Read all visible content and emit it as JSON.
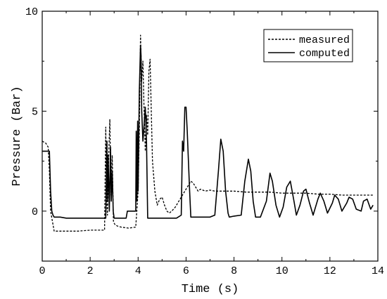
{
  "chart_data": {
    "type": "line",
    "title": "",
    "xlabel": "Time (s)",
    "ylabel": "Pressure (Bar)",
    "xlim": [
      0,
      14
    ],
    "ylim": [
      -2.5,
      10
    ],
    "xticks": [
      0,
      2,
      4,
      6,
      8,
      10,
      12,
      14
    ],
    "yticks": [
      0,
      5,
      10
    ],
    "xtick_labels": [
      "0",
      "2",
      "4",
      "6",
      "8",
      "10",
      "12",
      "14"
    ],
    "ytick_labels": [
      "0",
      "5",
      "10"
    ],
    "grid": false,
    "legend_position": "top-right",
    "series": [
      {
        "name": "measured",
        "style": "dashed",
        "color": "#000000",
        "x": [
          0,
          0.15,
          0.25,
          0.3,
          0.35,
          0.5,
          1.0,
          1.5,
          2.0,
          2.4,
          2.6,
          2.65,
          2.68,
          2.72,
          2.78,
          2.82,
          2.87,
          2.92,
          2.97,
          3.0,
          3.05,
          3.15,
          3.3,
          3.6,
          3.9,
          4.0,
          4.05,
          4.1,
          4.15,
          4.2,
          4.25,
          4.3,
          4.35,
          4.4,
          4.45,
          4.5,
          4.55,
          4.6,
          4.7,
          4.8,
          4.9,
          5.0,
          5.1,
          5.2,
          5.3,
          5.4,
          5.55,
          5.7,
          5.85,
          6.0,
          6.1,
          6.2,
          6.3,
          6.4,
          6.5,
          6.6,
          6.8,
          7.0,
          7.2,
          7.5,
          8.0,
          8.5,
          9.0,
          9.5,
          10.0,
          10.5,
          11.0,
          11.5,
          12.0,
          12.5,
          13.0,
          13.5,
          13.8
        ],
        "y": [
          3.5,
          3.4,
          3.2,
          2.0,
          0.0,
          -1.0,
          -1.0,
          -1.0,
          -0.95,
          -0.95,
          -0.95,
          4.2,
          1.0,
          -0.2,
          3.0,
          4.6,
          0.8,
          2.8,
          -0.5,
          -0.6,
          -0.7,
          -0.75,
          -0.8,
          -0.85,
          -0.8,
          1.0,
          4.0,
          8.8,
          6.5,
          7.5,
          5.0,
          3.0,
          4.8,
          3.8,
          7.0,
          7.6,
          5.0,
          2.5,
          1.0,
          0.3,
          0.6,
          0.7,
          0.3,
          0.0,
          -0.1,
          0.0,
          0.2,
          0.5,
          0.8,
          1.1,
          1.3,
          1.5,
          1.4,
          1.2,
          1.0,
          1.1,
          1.0,
          1.05,
          1.0,
          1.0,
          1.0,
          0.95,
          0.95,
          0.95,
          0.9,
          0.9,
          0.9,
          0.85,
          0.85,
          0.8,
          0.8,
          0.8,
          0.8
        ]
      },
      {
        "name": "computed",
        "style": "solid",
        "color": "#000000",
        "x": [
          0,
          0.3,
          0.35,
          0.4,
          0.45,
          0.5,
          0.7,
          0.75,
          1.0,
          2.0,
          2.5,
          2.65,
          2.7,
          2.72,
          2.75,
          2.8,
          2.85,
          2.88,
          2.92,
          2.96,
          3.0,
          3.5,
          3.55,
          3.9,
          3.92,
          3.95,
          3.98,
          4.0,
          4.05,
          4.1,
          4.12,
          4.15,
          4.2,
          4.22,
          4.26,
          4.3,
          4.35,
          4.4,
          4.42,
          4.45,
          4.5,
          4.9,
          5.0,
          5.2,
          5.4,
          5.6,
          5.8,
          5.85,
          5.9,
          5.95,
          6.0,
          6.05,
          6.1,
          6.15,
          6.2,
          6.25,
          6.3,
          6.6,
          7.0,
          7.2,
          7.35,
          7.45,
          7.55,
          7.65,
          7.75,
          7.8,
          8.0,
          8.3,
          8.45,
          8.6,
          8.7,
          8.8,
          8.9,
          9.1,
          9.35,
          9.5,
          9.6,
          9.75,
          9.9,
          10.05,
          10.2,
          10.35,
          10.5,
          10.6,
          10.75,
          10.9,
          11.0,
          11.15,
          11.3,
          11.5,
          11.6,
          11.75,
          11.9,
          12.1,
          12.2,
          12.35,
          12.5,
          12.7,
          12.8,
          12.95,
          13.1,
          13.3,
          13.4,
          13.55,
          13.7,
          13.8
        ],
        "y": [
          3.0,
          3.0,
          1.0,
          0.0,
          -0.2,
          -0.3,
          -0.3,
          -0.3,
          -0.35,
          -0.35,
          -0.35,
          -0.35,
          3.5,
          0.5,
          2.8,
          0.0,
          3.2,
          0.5,
          2.0,
          0.0,
          -0.35,
          -0.35,
          0.0,
          0.0,
          4.0,
          0.5,
          4.5,
          1.0,
          6.0,
          8.3,
          7.8,
          5.0,
          3.5,
          3.8,
          4.5,
          5.2,
          3.5,
          -0.35,
          -0.35,
          -0.35,
          -0.35,
          -0.35,
          -0.35,
          -0.35,
          -0.35,
          -0.35,
          -0.2,
          3.5,
          3.0,
          5.2,
          5.2,
          4.0,
          2.5,
          1.0,
          -0.3,
          -0.3,
          -0.3,
          -0.3,
          -0.3,
          -0.2,
          2.0,
          3.6,
          3.0,
          1.0,
          -0.1,
          -0.3,
          -0.25,
          -0.2,
          1.5,
          2.6,
          2.0,
          0.5,
          -0.3,
          -0.3,
          0.5,
          1.9,
          1.5,
          0.3,
          -0.3,
          0.2,
          1.2,
          1.5,
          0.5,
          -0.2,
          0.3,
          1.0,
          1.1,
          0.4,
          -0.2,
          0.6,
          0.9,
          0.5,
          -0.1,
          0.4,
          0.8,
          0.6,
          0.0,
          0.4,
          0.7,
          0.6,
          0.1,
          0.0,
          0.5,
          0.6,
          0.1,
          0.3
        ]
      }
    ]
  }
}
